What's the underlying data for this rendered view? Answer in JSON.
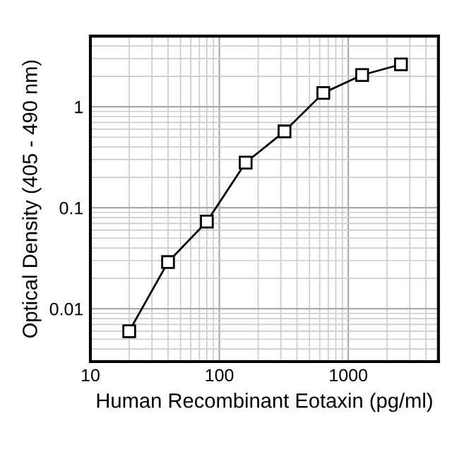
{
  "chart_data": {
    "type": "line",
    "xlabel": "Human Recombinant Eotaxin (pg/ml)",
    "ylabel": "Optical Density (405 - 490 nm)",
    "x": [
      20,
      40,
      80,
      160,
      320,
      640,
      1280,
      2560
    ],
    "series": [
      {
        "color": "#000000",
        "values": [
          0.006,
          0.029,
          0.073,
          0.28,
          0.57,
          1.37,
          2.06,
          2.63
        ]
      }
    ],
    "log": "xy",
    "xlim": [
      10,
      5000
    ],
    "ylim": [
      0.003,
      5
    ],
    "xticks": [
      10,
      100,
      1000
    ],
    "yticks": [
      0.01,
      0.1,
      1
    ],
    "grid": true,
    "marker": "square",
    "line_style": "solid"
  }
}
